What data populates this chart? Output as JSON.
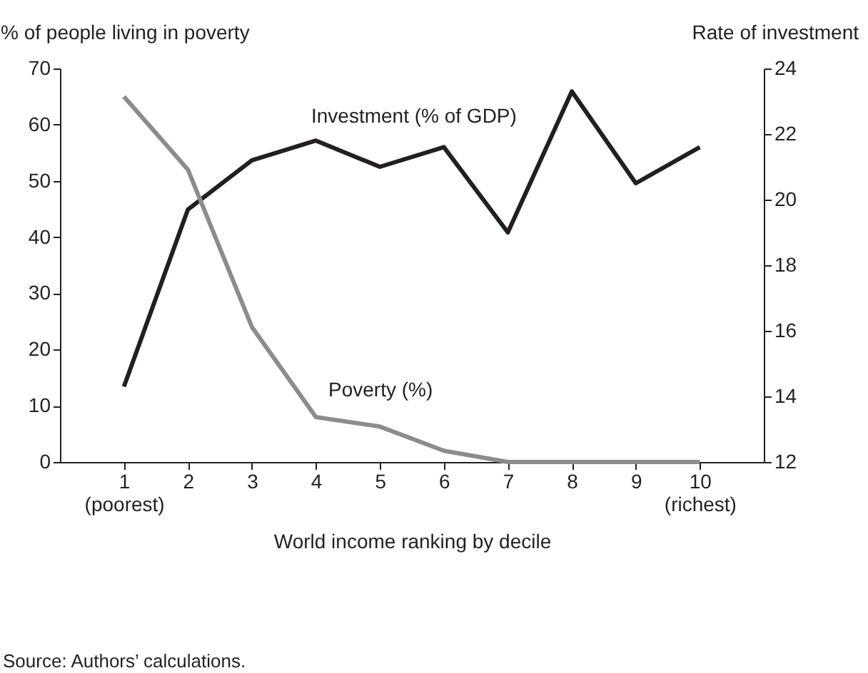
{
  "chart_data": {
    "type": "line",
    "xlabel": "World income ranking by decile",
    "ylabel": "% of people living in poverty",
    "y2label": "Rate of investment",
    "categories": [
      "1\n(poorest)",
      "2",
      "3",
      "4",
      "5",
      "6",
      "7",
      "8",
      "9",
      "10\n(richest)"
    ],
    "series": [
      {
        "name": "Investment (% of GDP)",
        "color": "#231f20",
        "axis": "y2",
        "values": [
          14.3,
          19.7,
          21.2,
          21.8,
          21.0,
          21.6,
          19.0,
          23.3,
          20.5,
          21.6
        ]
      },
      {
        "name": "Poverty (%)",
        "color": "#8c8c8c",
        "values": [
          65,
          52,
          24,
          8,
          6.3,
          2,
          0,
          0,
          0,
          0
        ]
      }
    ],
    "ylim": [
      0,
      70
    ],
    "yticks": [
      0,
      10,
      20,
      30,
      40,
      50,
      60,
      70
    ],
    "y2lim": [
      12,
      24
    ],
    "y2ticks": [
      12,
      14,
      16,
      18,
      20,
      22,
      24
    ],
    "grid": false,
    "marker": "none",
    "line_style": "solid",
    "annotations": [
      "Source: Authors’ calculations."
    ]
  }
}
